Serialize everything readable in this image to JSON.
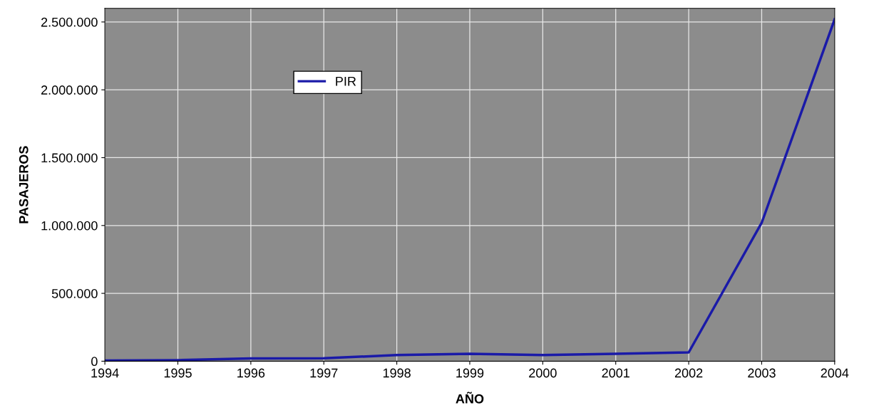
{
  "chart_data": {
    "type": "line",
    "xlabel": "AÑO",
    "ylabel": "PASAJEROS",
    "x": [
      1994,
      1995,
      1996,
      1997,
      1998,
      1999,
      2000,
      2001,
      2002,
      2003,
      2004
    ],
    "series": [
      {
        "name": "PIR",
        "color": "#1a1aa8",
        "values": [
          5000,
          8000,
          20000,
          22000,
          45000,
          55000,
          45000,
          55000,
          65000,
          1020000,
          2520000
        ]
      }
    ],
    "xlim": [
      1994,
      2004
    ],
    "xticks": [
      1994,
      1995,
      1996,
      1997,
      1998,
      1999,
      2000,
      2001,
      2002,
      2003,
      2004
    ],
    "ylim": [
      0,
      2600000
    ],
    "yticks": [
      {
        "value": 0,
        "label": "0"
      },
      {
        "value": 500000,
        "label": "500.000"
      },
      {
        "value": 1000000,
        "label": "1.000.000"
      },
      {
        "value": 1500000,
        "label": "1.500.000"
      },
      {
        "value": 2000000,
        "label": "2.000.000"
      },
      {
        "value": 2500000,
        "label": "2.500.000"
      }
    ],
    "grid": true,
    "legend": "top left",
    "marker": "none",
    "line_style": "solid"
  }
}
